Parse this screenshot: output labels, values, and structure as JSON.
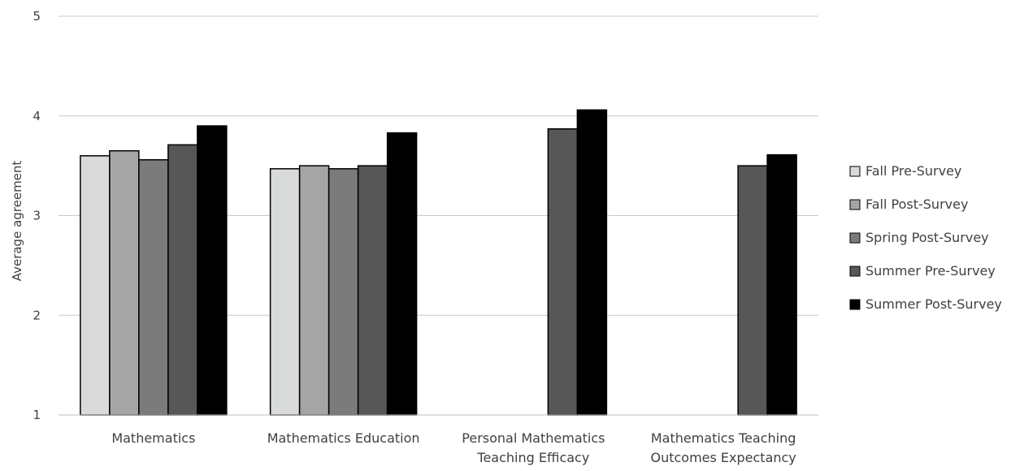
{
  "chart_data": {
    "type": "bar",
    "ylabel": "Average agreement",
    "xlabel": "",
    "ylim": [
      1,
      5
    ],
    "yticks": [
      "1",
      "2",
      "3",
      "4",
      "5"
    ],
    "grid": true,
    "legend_position": "right",
    "categories": [
      [
        "Mathematics"
      ],
      [
        "Mathematics Education"
      ],
      [
        "Personal Mathematics",
        "Teaching Efficacy"
      ],
      [
        "Mathematics Teaching",
        "Outcomes Expectancy"
      ]
    ],
    "series": [
      {
        "name": "Fall Pre-Survey",
        "color": "#d9dada",
        "values": [
          3.6,
          3.47,
          null,
          null
        ]
      },
      {
        "name": "Fall Post-Survey",
        "color": "#a5a5a5",
        "values": [
          3.65,
          3.5,
          null,
          null
        ]
      },
      {
        "name": "Spring Post-Survey",
        "color": "#7b7b7b",
        "values": [
          3.56,
          3.47,
          null,
          null
        ]
      },
      {
        "name": "Summer Pre-Survey",
        "color": "#575757",
        "values": [
          3.71,
          3.5,
          3.87,
          3.5
        ]
      },
      {
        "name": "Summer Post-Survey",
        "color": "#000000",
        "values": [
          3.9,
          3.83,
          4.06,
          3.61
        ]
      }
    ]
  }
}
